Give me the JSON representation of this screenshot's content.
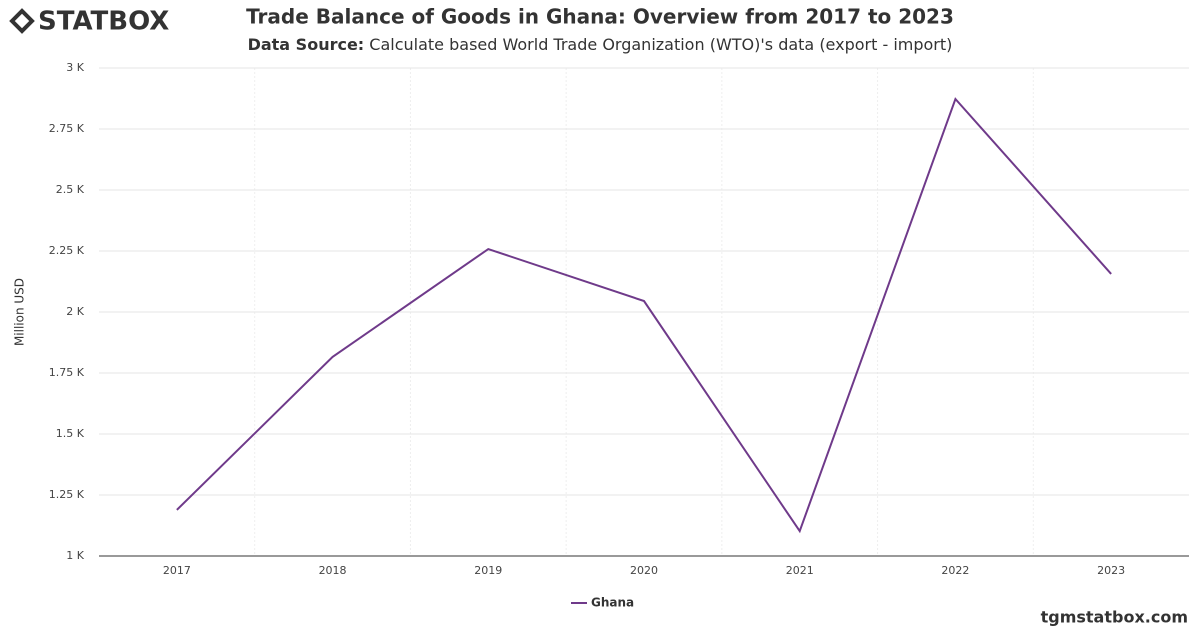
{
  "brand": "STATBOX",
  "footer": "tgmstatbox.com",
  "chart_data": {
    "type": "line",
    "title": "Trade Balance of Goods in Ghana: Overview from 2017 to 2023",
    "subtitle_label": "Data Source:",
    "subtitle": "Calculate based World Trade Organization (WTO)'s data (export - import)",
    "y_label": "Million USD",
    "categories": [
      "2017",
      "2018",
      "2019",
      "2020",
      "2021",
      "2022",
      "2023"
    ],
    "series": [
      {
        "name": "Ghana",
        "color": "#6f3a8a",
        "values": [
          1189,
          1816,
          2258,
          2045,
          1102,
          2873,
          2156
        ]
      }
    ],
    "ylim": [
      1000,
      3000
    ],
    "yticks": [
      {
        "value": 1000,
        "label": "1 K"
      },
      {
        "value": 1250,
        "label": "1.25 K"
      },
      {
        "value": 1500,
        "label": "1.5 K"
      },
      {
        "value": 1750,
        "label": "1.75 K"
      },
      {
        "value": 2000,
        "label": "2 K"
      },
      {
        "value": 2250,
        "label": "2.25 K"
      },
      {
        "value": 2500,
        "label": "2.5 K"
      },
      {
        "value": 2750,
        "label": "2.75 K"
      },
      {
        "value": 3000,
        "label": "3 K"
      }
    ],
    "grid": true,
    "legend": "bottom"
  }
}
